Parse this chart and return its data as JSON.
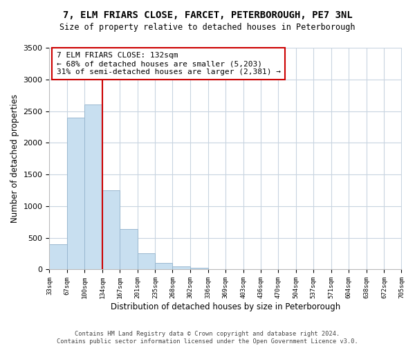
{
  "title": "7, ELM FRIARS CLOSE, FARCET, PETERBOROUGH, PE7 3NL",
  "subtitle": "Size of property relative to detached houses in Peterborough",
  "xlabel": "Distribution of detached houses by size in Peterborough",
  "ylabel": "Number of detached properties",
  "bar_color": "#c8dff0",
  "bar_edge_color": "#9ab8d0",
  "bins": [
    33,
    67,
    100,
    134,
    167,
    201,
    235,
    268,
    302,
    336,
    369,
    403,
    436,
    470,
    504,
    537,
    571,
    604,
    638,
    672,
    705
  ],
  "values": [
    400,
    2400,
    2600,
    1250,
    640,
    260,
    100,
    50,
    30,
    0,
    0,
    0,
    0,
    0,
    0,
    0,
    0,
    0,
    0,
    0
  ],
  "tick_labels": [
    "33sqm",
    "67sqm",
    "100sqm",
    "134sqm",
    "167sqm",
    "201sqm",
    "235sqm",
    "268sqm",
    "302sqm",
    "336sqm",
    "369sqm",
    "403sqm",
    "436sqm",
    "470sqm",
    "504sqm",
    "537sqm",
    "571sqm",
    "604sqm",
    "638sqm",
    "672sqm",
    "705sqm"
  ],
  "ylim": [
    0,
    3500
  ],
  "yticks": [
    0,
    500,
    1000,
    1500,
    2000,
    2500,
    3000,
    3500
  ],
  "property_line_x": 134,
  "property_line_color": "#cc0000",
  "annotation_text_line1": "7 ELM FRIARS CLOSE: 132sqm",
  "annotation_text_line2": "← 68% of detached houses are smaller (5,203)",
  "annotation_text_line3": "31% of semi-detached houses are larger (2,381) →",
  "footer_line1": "Contains HM Land Registry data © Crown copyright and database right 2024.",
  "footer_line2": "Contains public sector information licensed under the Open Government Licence v3.0.",
  "background_color": "#ffffff",
  "grid_color": "#c8d4e0"
}
